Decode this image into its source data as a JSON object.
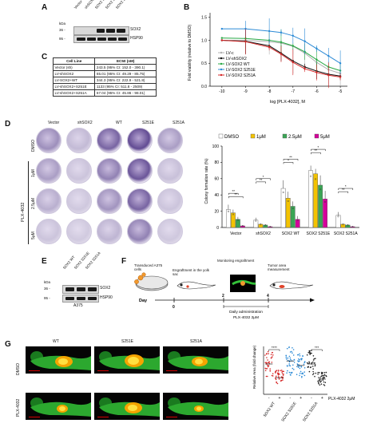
{
  "panels": {
    "A": "A",
    "B": "B",
    "C": "C",
    "D": "D",
    "E": "E",
    "F": "F",
    "G": "G"
  },
  "panelA": {
    "lanes": [
      "Vector",
      "shSOX2",
      "SOX2 WT",
      "SOX2 S251E",
      "SOX2 S251A"
    ],
    "kda_label": "kDa",
    "markers": [
      "36 -",
      "95 -"
    ],
    "bands": [
      "SOX2",
      "HSP90"
    ]
  },
  "panelB": {
    "xlabel": "log [PLX-4032], M",
    "ylabel": "Fold viability (relative to DMSO)",
    "xticks": [
      "-10",
      "-9",
      "-8",
      "-7",
      "-6",
      "-5"
    ],
    "yticks": [
      "0.0",
      "0.5",
      "1.0",
      "1.5"
    ],
    "legend": [
      "LV-c",
      "LV-shSOX2",
      "LV-SOX2 WT",
      "LV-SOX2 S251E",
      "LV-SOX2 S251A"
    ]
  },
  "panelC": {
    "headers": [
      "Cell Line",
      "EC50 (nM)"
    ],
    "rows": [
      [
        "Vector (sh)",
        "243.5 (95% CI: 152.0 - 390.1)"
      ],
      [
        "LV-shSOX2",
        "65.01 (95% CI: 49.29 - 85.75)"
      ],
      [
        "LV-SOX2+WT",
        "344.3 (95% CI: 222.9 - 521.8)"
      ],
      [
        "LV-shSOX2+S251E",
        "1133 (95% CI: 511.8 - 2509)"
      ],
      [
        "LV-shSOX2+S251A",
        "67.04 (95% CI: 45.86 - 98.01)"
      ]
    ]
  },
  "panelD": {
    "columns": [
      "Vector",
      "shSOX2",
      "WT",
      "S251E",
      "S251A"
    ],
    "rows": [
      "DMSO",
      "1μM",
      "2.5μM",
      "5μM"
    ],
    "drug_label": "PLX-4032",
    "legend": [
      "DMSO",
      "1μM",
      "2.5μM",
      "5μM"
    ],
    "ylabel": "Colony formation rate (%)",
    "yticks": [
      "0",
      "20",
      "40",
      "60",
      "80",
      "100"
    ],
    "groups": [
      "Vector",
      "shSOX2",
      "SOX2 WT",
      "SOX2 S251E",
      "SOX2 S251A"
    ],
    "sig": [
      "**",
      "**",
      "*",
      "**",
      "**",
      "*",
      "*",
      "**",
      "*",
      "**"
    ]
  },
  "panelE": {
    "lanes": [
      "SOX2 WT",
      "SOX2 S251E",
      "SOX2 S251A"
    ],
    "kda_label": "kDa",
    "markers": [
      "36 -",
      "95 -"
    ],
    "bands": [
      "SOX2",
      "HSP90"
    ],
    "cell_line": "A375"
  },
  "panelF": {
    "transduced": "Transduced A375 cells",
    "engraftment": "Engraftment in the yolk sac",
    "monitoring": "Monitoring engraftment",
    "tumor": "Tumor area measurement",
    "day_label": "Day",
    "days": [
      "0",
      "2",
      "4"
    ],
    "daily": "Daily administration",
    "dose": "PLX-4032 2μM"
  },
  "panelG": {
    "columns": [
      "WT",
      "S251E",
      "S251A"
    ],
    "rows": [
      "DMSO",
      "PLX-4032"
    ],
    "ylabel": "Relative Area (fold change)",
    "groups": [
      "SOX2 WT",
      "SOX2 S251E",
      "SOX2 S251A"
    ],
    "drug": "PLX-4032 2μM",
    "pm": [
      "-",
      "+",
      "-",
      "+",
      "-",
      "+"
    ],
    "sig": [
      "****",
      "***"
    ]
  },
  "chart_data": [
    {
      "type": "line",
      "panel": "B",
      "xlabel": "log [PLX-4032], M",
      "ylabel": "Fold viability (relative to DMSO)",
      "xlim": [
        -10.5,
        -4.7
      ],
      "ylim": [
        0,
        1.6
      ],
      "x": [
        -10,
        -9,
        -8,
        -7.5,
        -7,
        -6.5,
        -6,
        -5.5,
        -5
      ],
      "series": [
        {
          "name": "LV-c",
          "color": "#b0b0b0",
          "values": [
            1.0,
            1.0,
            0.97,
            0.94,
            0.87,
            0.72,
            0.52,
            0.36,
            0.28
          ]
        },
        {
          "name": "LV-shSOX2",
          "color": "#111111",
          "values": [
            1.0,
            0.98,
            0.88,
            0.72,
            0.55,
            0.42,
            0.33,
            0.26,
            0.22
          ]
        },
        {
          "name": "LV-SOX2 WT",
          "color": "#27a844",
          "values": [
            1.05,
            1.04,
            1.0,
            0.96,
            0.88,
            0.75,
            0.58,
            0.42,
            0.34
          ]
        },
        {
          "name": "LV-SOX2 S251E",
          "color": "#2b8ad6",
          "values": [
            1.25,
            1.25,
            1.2,
            1.17,
            1.1,
            0.98,
            0.82,
            0.66,
            0.5
          ]
        },
        {
          "name": "LV-SOX2 S251A",
          "color": "#d62828",
          "values": [
            1.0,
            0.97,
            0.85,
            0.7,
            0.52,
            0.38,
            0.3,
            0.24,
            0.2
          ]
        }
      ]
    },
    {
      "type": "bar",
      "panel": "D",
      "ylabel": "Colony formation rate (%)",
      "ylim": [
        0,
        100
      ],
      "categories": [
        "Vector",
        "shSOX2",
        "SOX2 WT",
        "SOX2 S251E",
        "SOX2 S251A"
      ],
      "series": [
        {
          "name": "DMSO",
          "color": "#ffffff",
          "values": [
            22,
            9,
            48,
            70,
            15
          ],
          "err": [
            6,
            3,
            10,
            6,
            4
          ]
        },
        {
          "name": "1μM",
          "color": "#f3c300",
          "values": [
            18,
            4,
            36,
            66,
            4
          ],
          "err": [
            4,
            1,
            8,
            6,
            1
          ]
        },
        {
          "name": "2.5μM",
          "color": "#3aa655",
          "values": [
            10,
            3,
            26,
            52,
            3
          ],
          "err": [
            3,
            1,
            6,
            12,
            1
          ]
        },
        {
          "name": "5μM",
          "color": "#d5009a",
          "values": [
            2,
            1,
            10,
            35,
            1
          ],
          "err": [
            1,
            0.5,
            4,
            10,
            0.5
          ]
        }
      ]
    },
    {
      "type": "scatter",
      "panel": "G",
      "ylabel": "Relative Area (fold change)",
      "categories": [
        "SOX2 WT -",
        "SOX2 WT +",
        "SOX2 S251E -",
        "SOX2 S251E +",
        "SOX2 S251A -",
        "SOX2 S251A +"
      ],
      "means": [
        1.0,
        0.55,
        1.1,
        0.95,
        1.0,
        0.5
      ],
      "colors": [
        "#d62828",
        "#d62828",
        "#2b8ad6",
        "#2b8ad6",
        "#222222",
        "#222222"
      ]
    }
  ]
}
